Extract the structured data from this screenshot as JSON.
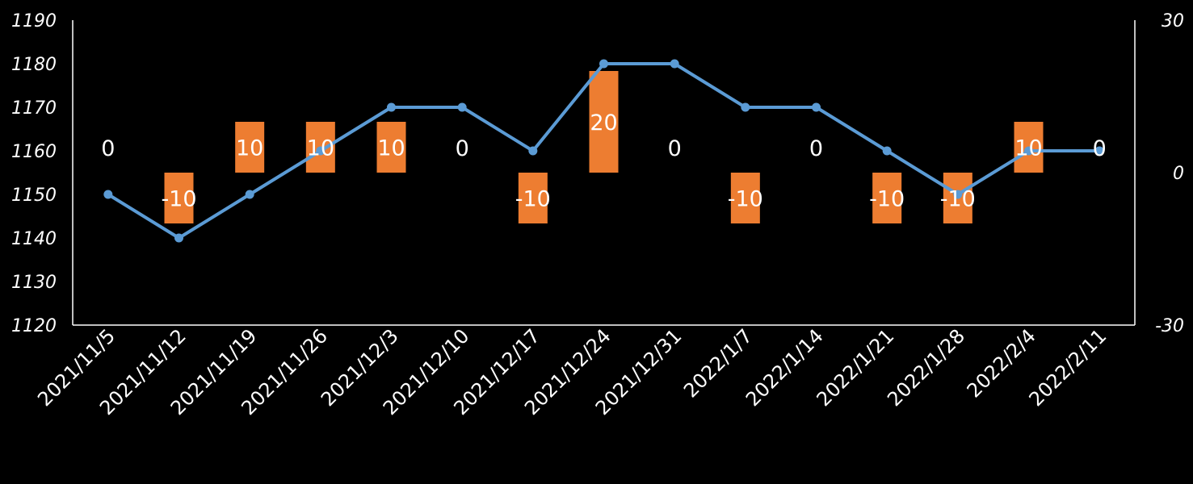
{
  "chart_data": {
    "type": "bar+line",
    "categories": [
      "2021/11/5",
      "2021/11/12",
      "2021/11/19",
      "2021/11/26",
      "2021/12/3",
      "2021/12/10",
      "2021/12/17",
      "2021/12/24",
      "2021/12/31",
      "2022/1/7",
      "2022/1/14",
      "2022/1/21",
      "2022/1/28",
      "2022/2/4",
      "2022/2/11"
    ],
    "series": [
      {
        "kind": "line",
        "axis": "left",
        "color": "#5b9bd5",
        "values": [
          1150,
          1140,
          1150,
          1160,
          1170,
          1170,
          1160,
          1180,
          1180,
          1170,
          1170,
          1160,
          1150,
          1160,
          1160
        ]
      },
      {
        "kind": "bar",
        "axis": "right",
        "color": "#ed7d31",
        "values": [
          0,
          -10,
          10,
          10,
          10,
          0,
          -10,
          20,
          0,
          -10,
          0,
          -10,
          -10,
          10,
          0
        ]
      }
    ],
    "y_left": {
      "min": 1120,
      "max": 1190,
      "ticks": [
        1120,
        1130,
        1140,
        1150,
        1160,
        1170,
        1180,
        1190
      ]
    },
    "y_right": {
      "min": -30,
      "max": 30,
      "ticks": [
        -30,
        0,
        30
      ]
    },
    "title": "",
    "xlabel": "",
    "ylabel": "",
    "grid": false,
    "legend": "none"
  }
}
